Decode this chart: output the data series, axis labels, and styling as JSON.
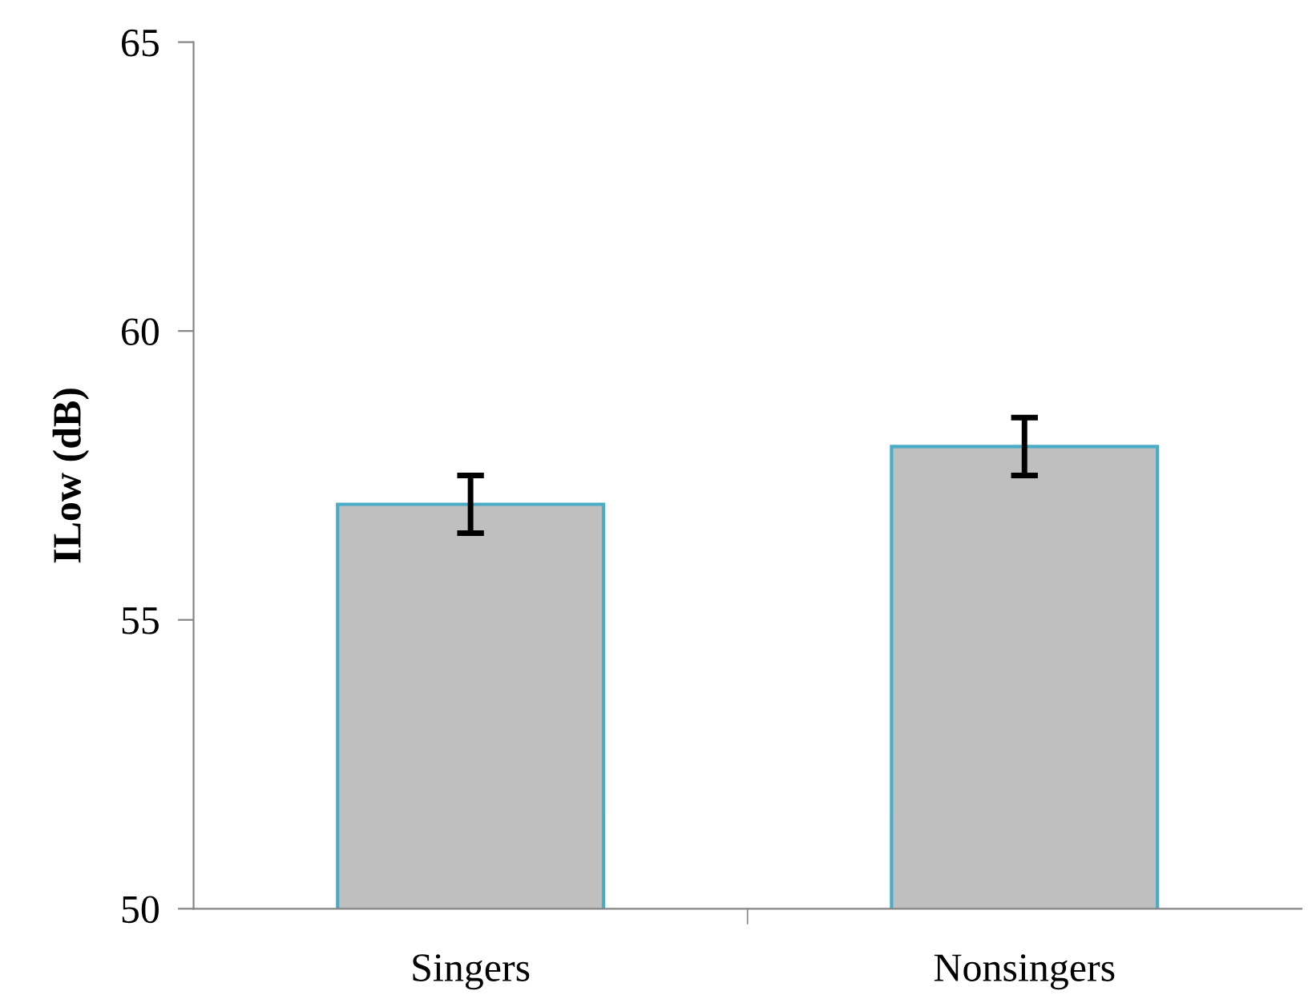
{
  "chart_data": {
    "type": "bar",
    "ylabel": "ILow (dB)",
    "categories": [
      "Singers",
      "Nonsingers"
    ],
    "values": [
      57.0,
      58.0
    ],
    "errors": [
      0.5,
      0.5
    ],
    "color": "#bfbfbf",
    "ylim": [
      50,
      65
    ],
    "yticks": [
      50,
      55,
      60,
      65
    ],
    "grid": false
  }
}
